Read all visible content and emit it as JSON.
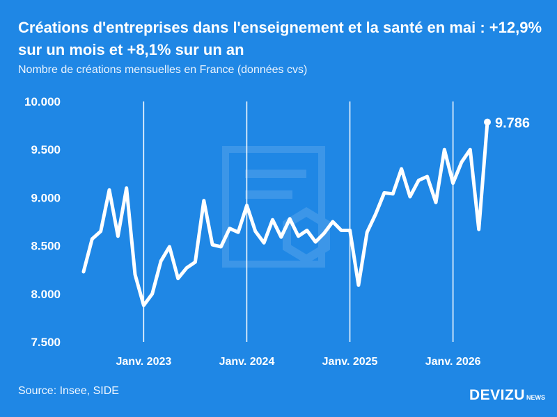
{
  "title": "Créations d'entreprises dans l'enseignement et la santé en mai : +12,9% sur un mois et +8,1% sur un an",
  "subtitle": "Nombre de créations mensuelles en France (données cvs)",
  "source": "Source: Insee, SIDE",
  "logo": {
    "main": "DEVIZU",
    "sub": "NEWS"
  },
  "colors": {
    "background": "#1f87e5",
    "line": "#ffffff",
    "gridline": "#ffffff"
  },
  "chart_data": {
    "type": "line",
    "title": "Créations d'entreprises dans l'enseignement et la santé en mai : +12,9% sur un mois et +8,1% sur un an",
    "ylim": [
      7500,
      10000
    ],
    "yticks": [
      7500,
      8000,
      8500,
      9000,
      9500,
      10000
    ],
    "ytick_labels": [
      "7.500",
      "8.000",
      "8.500",
      "9.000",
      "9.500",
      "10.000"
    ],
    "xticks": [
      "2023-01",
      "2024-01",
      "2025-01",
      "2026-01"
    ],
    "xtick_labels": [
      "Janv. 2023",
      "Janv. 2024",
      "Janv. 2025",
      "Janv. 2026"
    ],
    "x_gridlines": true,
    "y_gridlines": false,
    "last_label": "9.786",
    "x": [
      "2022-06",
      "2022-07",
      "2022-08",
      "2022-09",
      "2022-10",
      "2022-11",
      "2022-12",
      "2023-01",
      "2023-02",
      "2023-03",
      "2023-04",
      "2023-05",
      "2023-06",
      "2023-07",
      "2023-08",
      "2023-09",
      "2023-10",
      "2023-11",
      "2023-12",
      "2024-01",
      "2024-02",
      "2024-03",
      "2024-04",
      "2024-05",
      "2024-06",
      "2024-07",
      "2024-08",
      "2024-09",
      "2024-10",
      "2024-11",
      "2024-12",
      "2025-01",
      "2025-02",
      "2025-03",
      "2025-04",
      "2025-05",
      "2025-06",
      "2025-07",
      "2025-08",
      "2025-09",
      "2025-10",
      "2025-11",
      "2025-12",
      "2026-01",
      "2026-02",
      "2026-03",
      "2026-04",
      "2026-05"
    ],
    "values": [
      8230,
      8570,
      8650,
      9080,
      8600,
      9100,
      8200,
      7880,
      8000,
      8340,
      8490,
      8160,
      8270,
      8330,
      8970,
      8510,
      8490,
      8680,
      8640,
      8920,
      8650,
      8530,
      8770,
      8590,
      8780,
      8600,
      8660,
      8540,
      8630,
      8750,
      8660,
      8660,
      8090,
      8640,
      8830,
      9050,
      9040,
      9300,
      9010,
      9180,
      9220,
      8950,
      9500,
      9150,
      9370,
      9500,
      8670,
      9786
    ]
  }
}
